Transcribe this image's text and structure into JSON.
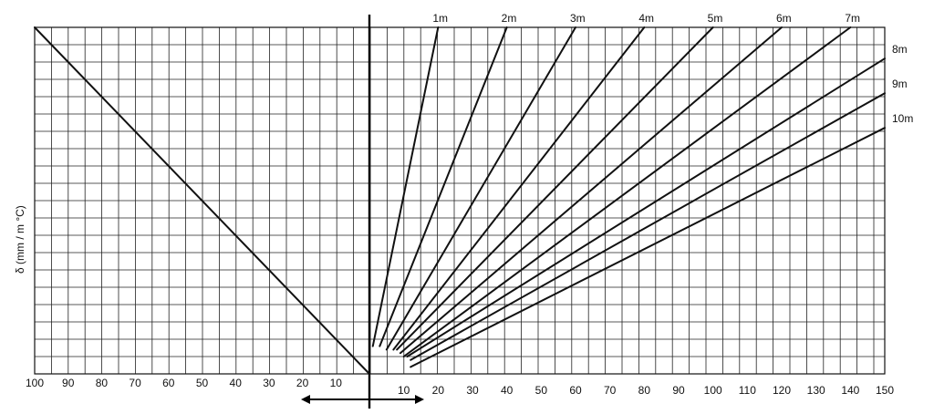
{
  "chart_data": {
    "type": "line",
    "title": "",
    "ylabel": "δ (mm / m °C)",
    "xlabel": "",
    "grid": true,
    "left_axis": {
      "xlim": [
        100,
        0
      ],
      "ticks": [
        100,
        90,
        80,
        70,
        60,
        50,
        40,
        30,
        20,
        10
      ]
    },
    "right_axis": {
      "xlim": [
        0,
        150
      ],
      "ticks": [
        10,
        20,
        30,
        40,
        50,
        60,
        70,
        80,
        90,
        100,
        110,
        120,
        130,
        140,
        150
      ]
    },
    "y_range": [
      0,
      1
    ],
    "diagonal": {
      "from": [
        100,
        1
      ],
      "to": [
        0,
        0
      ]
    },
    "series": [
      {
        "name": "1m",
        "start": [
          1,
          0.08
        ],
        "end": [
          20,
          1.0
        ]
      },
      {
        "name": "2m",
        "start": [
          3,
          0.08
        ],
        "end": [
          40,
          1.0
        ]
      },
      {
        "name": "3m",
        "start": [
          5,
          0.07
        ],
        "end": [
          60,
          1.0
        ]
      },
      {
        "name": "4m",
        "start": [
          7,
          0.07
        ],
        "end": [
          80,
          1.0
        ]
      },
      {
        "name": "5m",
        "start": [
          8,
          0.07
        ],
        "end": [
          100,
          1.0
        ]
      },
      {
        "name": "6m",
        "start": [
          9,
          0.06
        ],
        "end": [
          120,
          1.0
        ]
      },
      {
        "name": "7m",
        "start": [
          10,
          0.05
        ],
        "end": [
          140,
          1.0
        ]
      },
      {
        "name": "8m",
        "start": [
          11,
          0.05
        ],
        "end": [
          150,
          0.91
        ]
      },
      {
        "name": "9m",
        "start": [
          12,
          0.04
        ],
        "end": [
          150,
          0.81
        ]
      },
      {
        "name": "10m",
        "start": [
          12,
          0.02
        ],
        "end": [
          150,
          0.71
        ]
      }
    ],
    "arrow": "double-headed, horizontal, below origin"
  }
}
